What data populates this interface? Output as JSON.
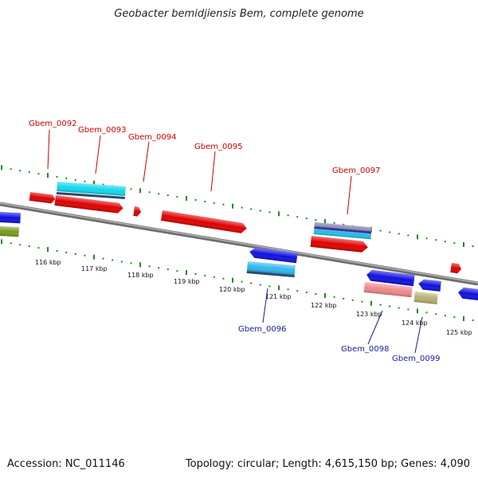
{
  "title": "Geobacter bemidjiensis Bem, complete genome",
  "footer": {
    "accession": "Accession: NC_011146",
    "summary": "Topology: circular; Length: 4,615,150 bp; Genes: 4,090"
  },
  "colors": {
    "backbone": "#8a8a8a",
    "tick": "#1f8a1f",
    "forward_label": "#cc0000",
    "reverse_label": "#1a1aa0",
    "gene_red": "#e00000",
    "gene_blue": "#1010e0",
    "gene_cyan": "#10d8f0",
    "gene_light_blue": "#30b8f0",
    "gene_olive": "#7a9a20",
    "gene_pink": "#f08888",
    "gene_khaki": "#b8b070",
    "gene_slate": "#7070a0"
  },
  "scale": {
    "unit": "kbp",
    "labels": [
      "116 kbp",
      "117 kbp",
      "118 kbp",
      "119 kbp",
      "120 kbp",
      "121 kbp",
      "122 kbp",
      "123 kbp",
      "124 kbp",
      "125 kbp"
    ]
  },
  "gene_labels": [
    {
      "name": "Gbem_0092",
      "strand": "forward"
    },
    {
      "name": "Gbem_0093",
      "strand": "forward"
    },
    {
      "name": "Gbem_0094",
      "strand": "forward"
    },
    {
      "name": "Gbem_0095",
      "strand": "forward"
    },
    {
      "name": "Gbem_0097",
      "strand": "forward"
    },
    {
      "name": "Gbem_0096",
      "strand": "reverse"
    },
    {
      "name": "Gbem_0098",
      "strand": "reverse"
    },
    {
      "name": "Gbem_0099",
      "strand": "reverse"
    }
  ]
}
